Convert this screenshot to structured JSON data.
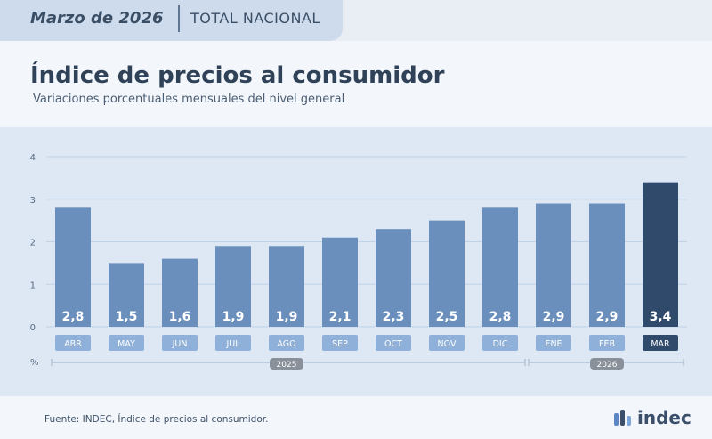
{
  "header": {
    "period": "Marzo de 2026",
    "scope": "TOTAL NACIONAL"
  },
  "title": "Índice de precios al consumidor",
  "subtitle": "Variaciones porcentuales mensuales del nivel general",
  "source": "Fuente: INDEC, Índice de precios al consumidor.",
  "logo_text": "indec",
  "colors": {
    "bar": "#6a8fbd",
    "highlight": "#2f4a6a",
    "label_bg": "#8fb0d8",
    "year_tag": "#8a9099"
  },
  "chart_data": {
    "type": "bar",
    "categories": [
      "ABR",
      "MAY",
      "JUN",
      "JUL",
      "AGO",
      "SEP",
      "OCT",
      "NOV",
      "DIC",
      "ENE",
      "FEB",
      "MAR"
    ],
    "values": [
      2.8,
      1.5,
      1.6,
      1.9,
      1.9,
      2.1,
      2.3,
      2.5,
      2.8,
      2.9,
      2.9,
      3.4
    ],
    "value_labels": [
      "2,8",
      "1,5",
      "1,6",
      "1,9",
      "1,9",
      "2,1",
      "2,3",
      "2,5",
      "2,8",
      "2,9",
      "2,9",
      "3,4"
    ],
    "ylabel": "%",
    "ylim": [
      0,
      4
    ],
    "yticks": [
      0,
      1,
      2,
      3,
      4
    ],
    "ytick_labels": [
      "0",
      "1",
      "2",
      "3",
      "4"
    ],
    "grid": true,
    "highlight_index": 11,
    "year_groups": [
      {
        "label": "2025",
        "start": 0,
        "end": 8
      },
      {
        "label": "2026",
        "start": 9,
        "end": 11
      }
    ]
  }
}
